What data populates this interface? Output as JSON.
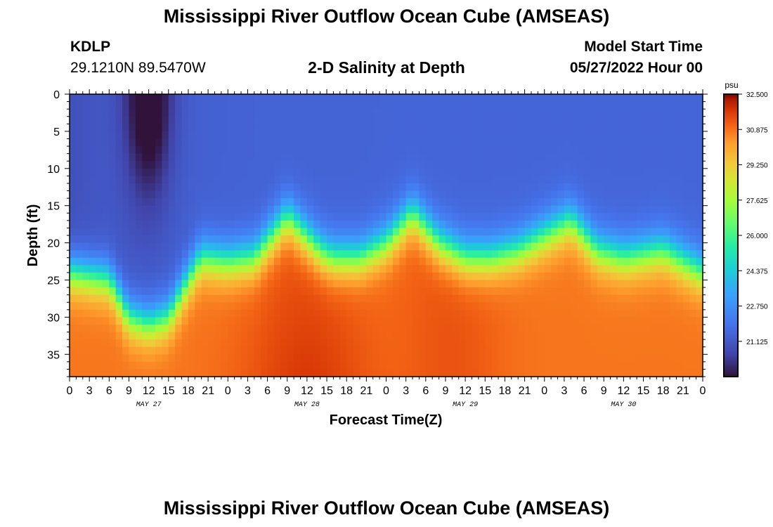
{
  "header": {
    "title": "Mississippi River Outflow Ocean Cube (AMSEAS)",
    "station_id": "KDLP",
    "station_coords": "29.1210N  89.5470W",
    "subtitle": "2-D Salinity at Depth",
    "model_start_label": "Model Start Time",
    "model_start_value": "05/27/2022 Hour 00"
  },
  "footer": {
    "title": "Mississippi River Outflow Ocean Cube (AMSEAS)"
  },
  "chart_data": {
    "type": "heatmap",
    "title": "2-D Salinity at Depth",
    "xlabel": "Forecast Time(Z)",
    "ylabel": "Depth (ft)",
    "x_tick_labels": [
      "0",
      "3",
      "6",
      "9",
      "12",
      "15",
      "18",
      "21",
      "0",
      "3",
      "6",
      "9",
      "12",
      "15",
      "18",
      "21",
      "0",
      "3",
      "6",
      "9",
      "12",
      "15",
      "18",
      "21",
      "0",
      "3",
      "6",
      "9",
      "12",
      "15",
      "18",
      "21",
      "0"
    ],
    "x_range_hours": [
      0,
      96
    ],
    "day_labels": [
      {
        "text": "MAY 27",
        "hour": 12
      },
      {
        "text": "MAY 28",
        "hour": 36
      },
      {
        "text": "MAY 29",
        "hour": 60
      },
      {
        "text": "MAY 30",
        "hour": 84
      }
    ],
    "y_ticks": [
      0,
      5,
      10,
      15,
      20,
      25,
      30,
      35
    ],
    "ylim": [
      0,
      38
    ],
    "y_inverted": true,
    "colorbar": {
      "unit": "psu",
      "min": 19.5,
      "max": 32.5,
      "tick_labels": [
        "32.500",
        "30.875",
        "29.250",
        "27.625",
        "26.000",
        "24.375",
        "22.750",
        "21.125"
      ]
    },
    "halocline_depth_ft": [
      {
        "hour": 0,
        "depth": 24
      },
      {
        "hour": 6,
        "depth": 25
      },
      {
        "hour": 9,
        "depth": 30
      },
      {
        "hour": 12,
        "depth": 31
      },
      {
        "hour": 15,
        "depth": 30
      },
      {
        "hour": 18,
        "depth": 25
      },
      {
        "hour": 20,
        "depth": 22
      },
      {
        "hour": 24,
        "depth": 22.5
      },
      {
        "hour": 28,
        "depth": 22
      },
      {
        "hour": 33,
        "depth": 16.5
      },
      {
        "hour": 38,
        "depth": 21
      },
      {
        "hour": 40,
        "depth": 22
      },
      {
        "hour": 44,
        "depth": 22
      },
      {
        "hour": 48,
        "depth": 20
      },
      {
        "hour": 52,
        "depth": 16
      },
      {
        "hour": 56,
        "depth": 20
      },
      {
        "hour": 60,
        "depth": 22
      },
      {
        "hour": 64,
        "depth": 22
      },
      {
        "hour": 68,
        "depth": 21
      },
      {
        "hour": 76,
        "depth": 17
      },
      {
        "hour": 80,
        "depth": 21
      },
      {
        "hour": 84,
        "depth": 22
      },
      {
        "hour": 90,
        "depth": 21
      },
      {
        "hour": 96,
        "depth": 24
      }
    ],
    "surface_salinity_psu": 21.5,
    "bottom_salinity_psu": 30.8,
    "low_salinity_plume": {
      "center_hour": 12,
      "min_psu": 19.6
    }
  }
}
